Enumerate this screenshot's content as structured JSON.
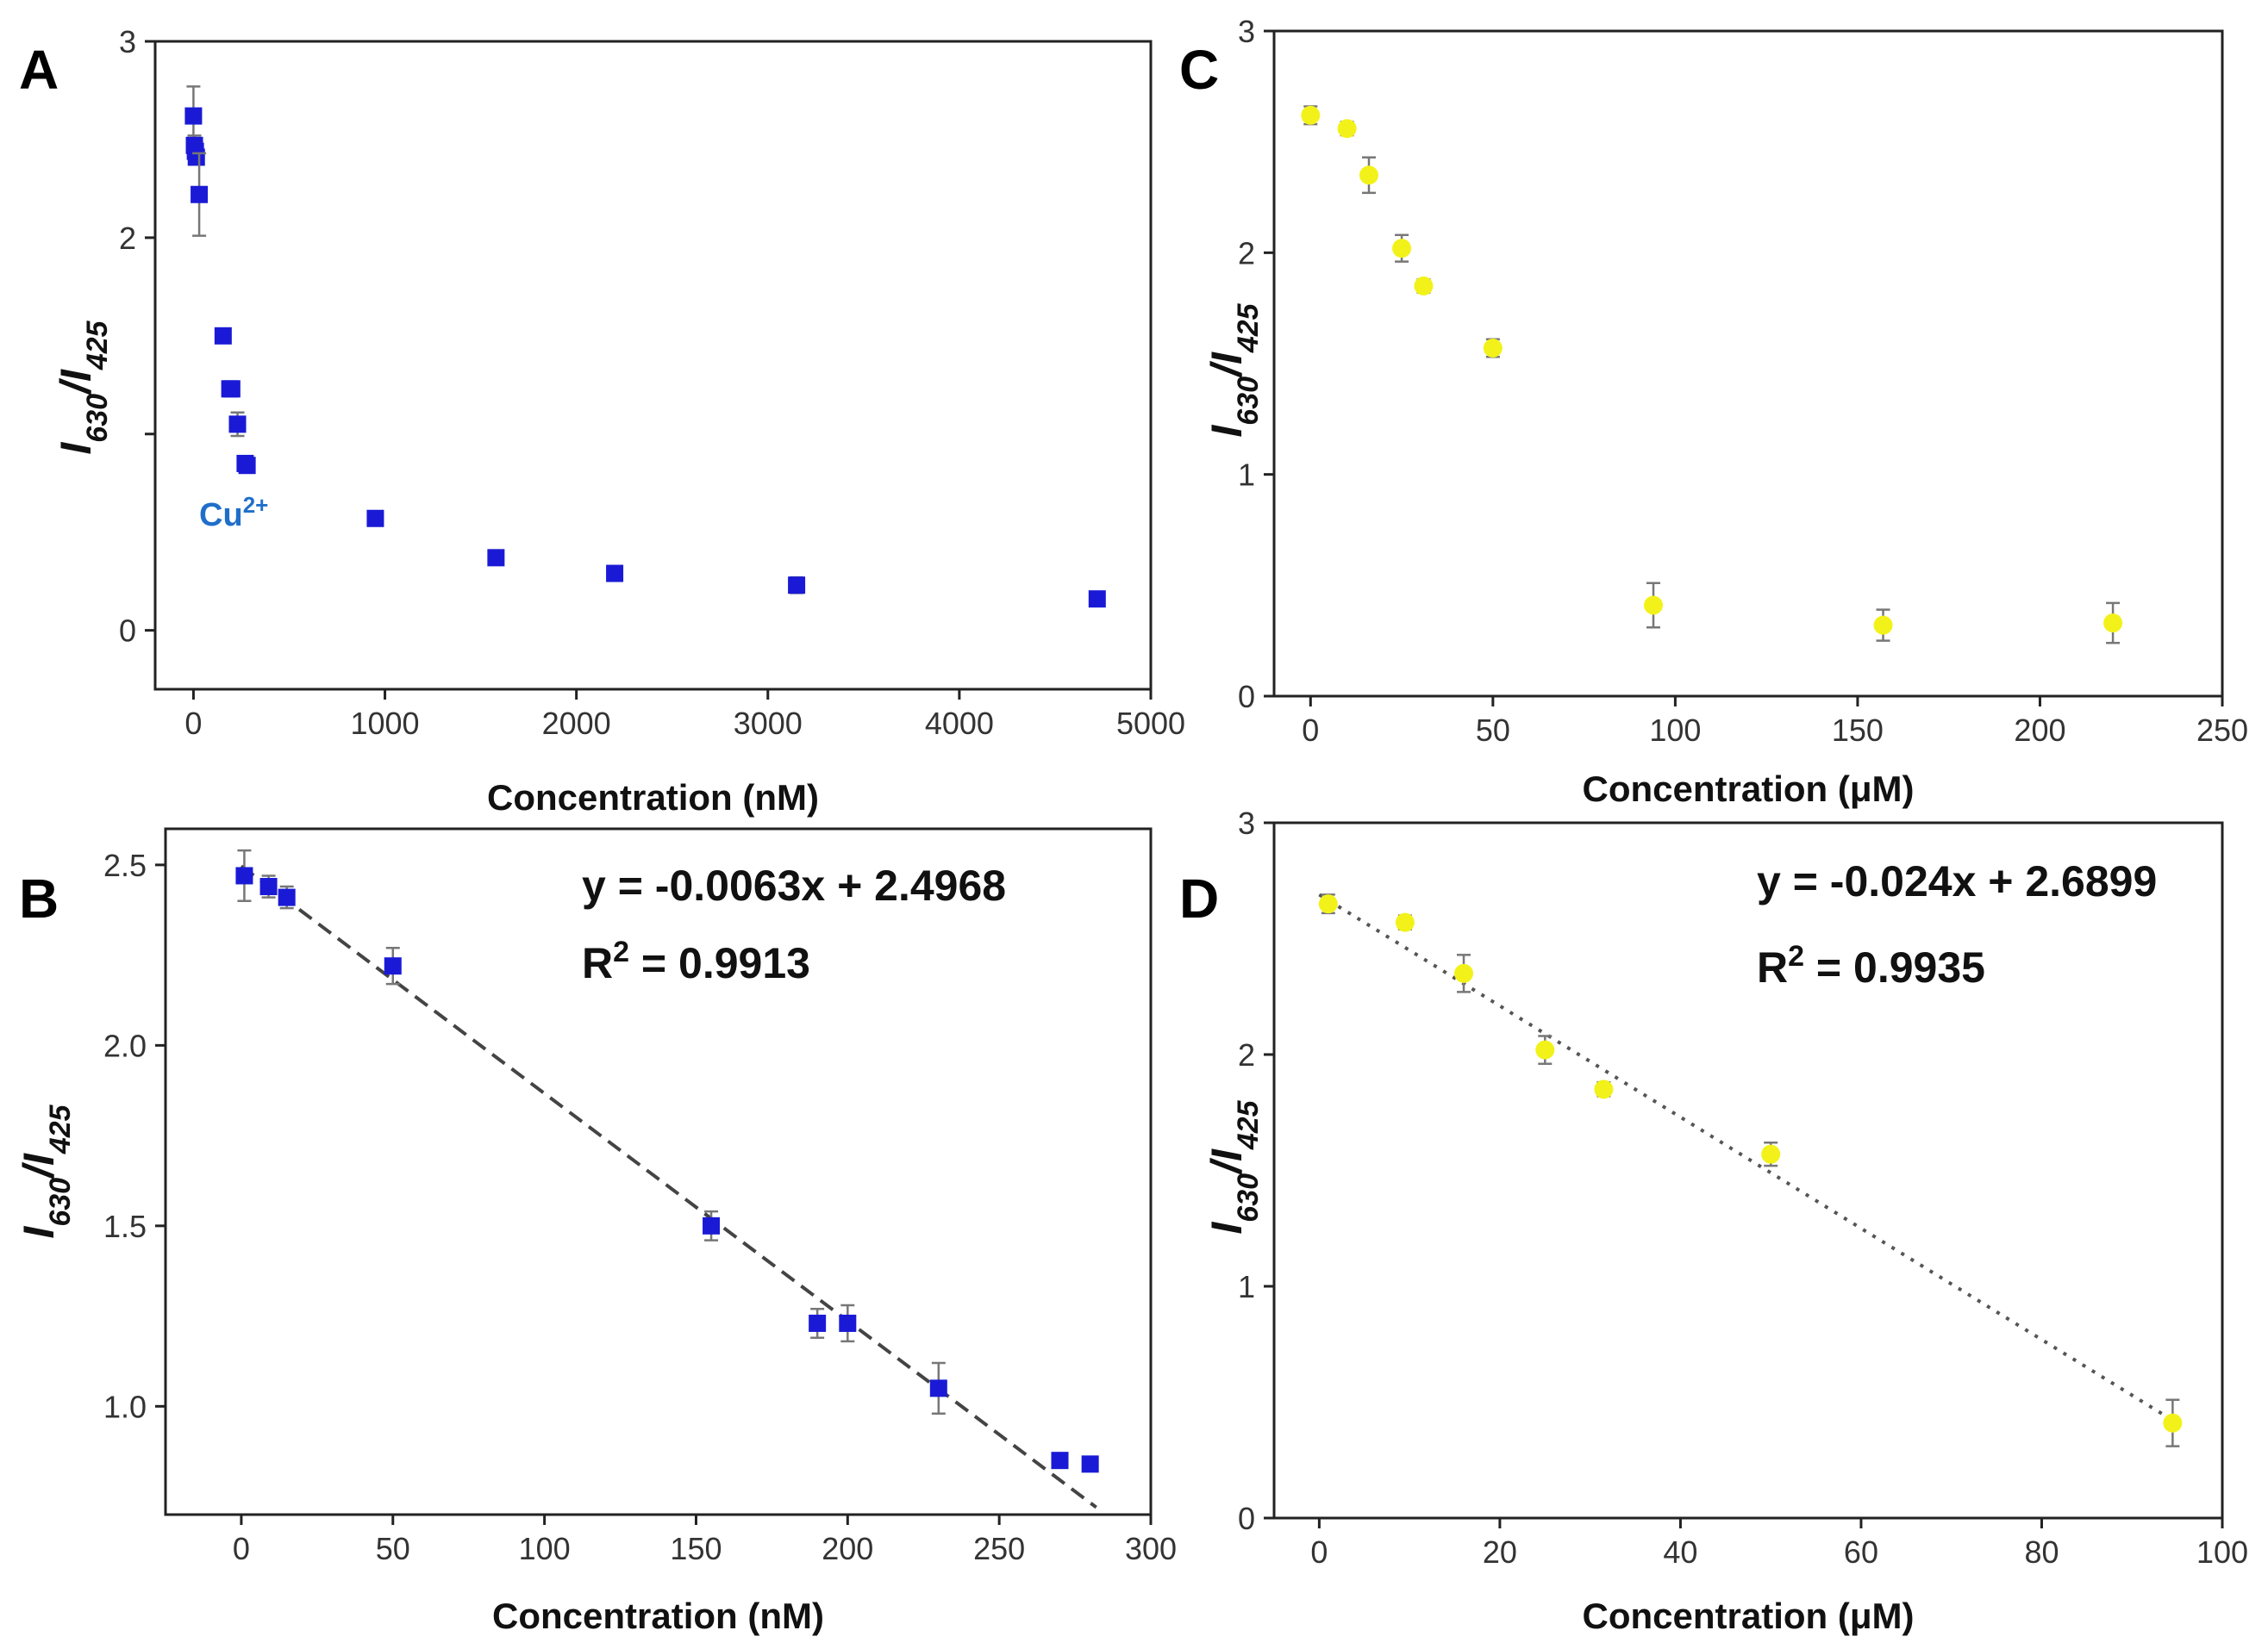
{
  "chart_data": [
    {
      "panel": "A",
      "type": "scatter",
      "xlabel": "Concentration (nM)",
      "ylabel_main": "I",
      "ylabel_sub1": "630",
      "ylabel_slash": "/I",
      "ylabel_sub2": "425",
      "xlim": [
        -200,
        5000
      ],
      "ylim": [
        -0.3,
        3
      ],
      "xticks": [
        0,
        1000,
        2000,
        3000,
        4000,
        5000
      ],
      "yticks": [
        0,
        1,
        2,
        3
      ],
      "ytick_labels": [
        "0",
        "",
        "2",
        "3"
      ],
      "marker_color": "#1a1ad6",
      "marker": "square",
      "annotation": {
        "text": "Cu",
        "sup": "2+",
        "x": 480,
        "y": 0.6,
        "color": "#1f6fc9"
      },
      "points": [
        {
          "x": 0,
          "y": 2.62,
          "err": 0.15
        },
        {
          "x": 5,
          "y": 2.47,
          "err": 0.05
        },
        {
          "x": 10,
          "y": 2.44,
          "err": 0.03
        },
        {
          "x": 15,
          "y": 2.41,
          "err": 0.03
        },
        {
          "x": 30,
          "y": 2.22,
          "err": 0.21
        },
        {
          "x": 155,
          "y": 1.5,
          "err": 0.02
        },
        {
          "x": 190,
          "y": 1.23,
          "err": 0.03
        },
        {
          "x": 200,
          "y": 1.23,
          "err": 0.03
        },
        {
          "x": 230,
          "y": 1.05,
          "err": 0.06
        },
        {
          "x": 270,
          "y": 0.85,
          "err": 0.02
        },
        {
          "x": 280,
          "y": 0.84,
          "err": 0.02
        },
        {
          "x": 950,
          "y": 0.57,
          "err": 0.02
        },
        {
          "x": 1580,
          "y": 0.37,
          "err": 0.02
        },
        {
          "x": 2200,
          "y": 0.29,
          "err": 0.02
        },
        {
          "x": 3150,
          "y": 0.23,
          "err": 0.04
        },
        {
          "x": 4720,
          "y": 0.16,
          "err": 0.02
        }
      ]
    },
    {
      "panel": "B",
      "type": "scatter",
      "xlabel": "Concentration (nM)",
      "ylabel_main": "I",
      "ylabel_sub1": "630",
      "ylabel_slash": "/I",
      "ylabel_sub2": "425",
      "xlim": [
        -25,
        300
      ],
      "ylim": [
        0.7,
        2.6
      ],
      "xticks": [
        0,
        50,
        100,
        150,
        200,
        250,
        300
      ],
      "yticks": [
        1.0,
        1.5,
        2.0,
        2.5
      ],
      "ytick_labels": [
        "1.0",
        "1.5",
        "2.0",
        "2.5"
      ],
      "marker_color": "#1a1ad6",
      "marker": "square",
      "equation": "y = -0.0063x + 2.4968",
      "r2_label": "R",
      "r2_sup": "2",
      "r2_value": " = 0.9913",
      "fit": {
        "slope": -0.0063,
        "intercept": 2.4968,
        "x_range": [
          0,
          282
        ],
        "style": "dashed",
        "color": "#444444"
      },
      "points": [
        {
          "x": 1,
          "y": 2.47,
          "err": 0.07
        },
        {
          "x": 9,
          "y": 2.44,
          "err": 0.03
        },
        {
          "x": 15,
          "y": 2.41,
          "err": 0.03
        },
        {
          "x": 50,
          "y": 2.22,
          "err": 0.05
        },
        {
          "x": 155,
          "y": 1.5,
          "err": 0.04
        },
        {
          "x": 190,
          "y": 1.23,
          "err": 0.04
        },
        {
          "x": 200,
          "y": 1.23,
          "err": 0.05
        },
        {
          "x": 230,
          "y": 1.05,
          "err": 0.07
        },
        {
          "x": 270,
          "y": 0.85,
          "err": 0.02
        },
        {
          "x": 280,
          "y": 0.84,
          "err": 0.02
        }
      ]
    },
    {
      "panel": "C",
      "type": "scatter",
      "xlabel": "Concentration (μM)",
      "ylabel_main": "I",
      "ylabel_sub1": "630",
      "ylabel_slash": "/I",
      "ylabel_sub2": "425",
      "xlim": [
        -10,
        250
      ],
      "ylim": [
        0,
        3
      ],
      "xticks": [
        0,
        50,
        100,
        150,
        200,
        250
      ],
      "yticks": [
        0,
        1,
        2,
        3
      ],
      "ytick_labels": [
        "0",
        "1",
        "2",
        "3"
      ],
      "marker_color": "#f2f21a",
      "marker": "circle",
      "points": [
        {
          "x": 0,
          "y": 2.62,
          "err": 0.04
        },
        {
          "x": 10,
          "y": 2.56,
          "err": 0.03
        },
        {
          "x": 16,
          "y": 2.35,
          "err": 0.08
        },
        {
          "x": 25,
          "y": 2.02,
          "err": 0.06
        },
        {
          "x": 31,
          "y": 1.85,
          "err": 0.03
        },
        {
          "x": 50,
          "y": 1.57,
          "err": 0.04
        },
        {
          "x": 94,
          "y": 0.41,
          "err": 0.1
        },
        {
          "x": 157,
          "y": 0.32,
          "err": 0.07
        },
        {
          "x": 220,
          "y": 0.33,
          "err": 0.09
        }
      ]
    },
    {
      "panel": "D",
      "type": "scatter",
      "xlabel": "Concentration (μM)",
      "ylabel_main": "I",
      "ylabel_sub1": "630",
      "ylabel_slash": "/I",
      "ylabel_sub2": "425",
      "xlim": [
        -5,
        100
      ],
      "ylim": [
        0,
        3
      ],
      "xticks": [
        0,
        20,
        40,
        60,
        80,
        100
      ],
      "yticks": [
        0,
        1,
        2,
        3
      ],
      "ytick_labels": [
        "0",
        "1",
        "2",
        "3"
      ],
      "marker_color": "#f2f21a",
      "marker": "circle",
      "equation": "y = -0.024x + 2.6899",
      "r2_label": "R",
      "r2_sup": "2",
      "r2_value": " = 0.9935",
      "fit": {
        "slope": -0.024,
        "intercept": 2.6899,
        "x_range": [
          0,
          95
        ],
        "style": "dotted",
        "color": "#555555"
      },
      "points": [
        {
          "x": 1,
          "y": 2.65,
          "err": 0.04
        },
        {
          "x": 9.5,
          "y": 2.57,
          "err": 0.03
        },
        {
          "x": 16,
          "y": 2.35,
          "err": 0.08
        },
        {
          "x": 25,
          "y": 2.02,
          "err": 0.06
        },
        {
          "x": 31.5,
          "y": 1.85,
          "err": 0.03
        },
        {
          "x": 50,
          "y": 1.57,
          "err": 0.05
        },
        {
          "x": 94.5,
          "y": 0.41,
          "err": 0.1
        }
      ]
    }
  ]
}
